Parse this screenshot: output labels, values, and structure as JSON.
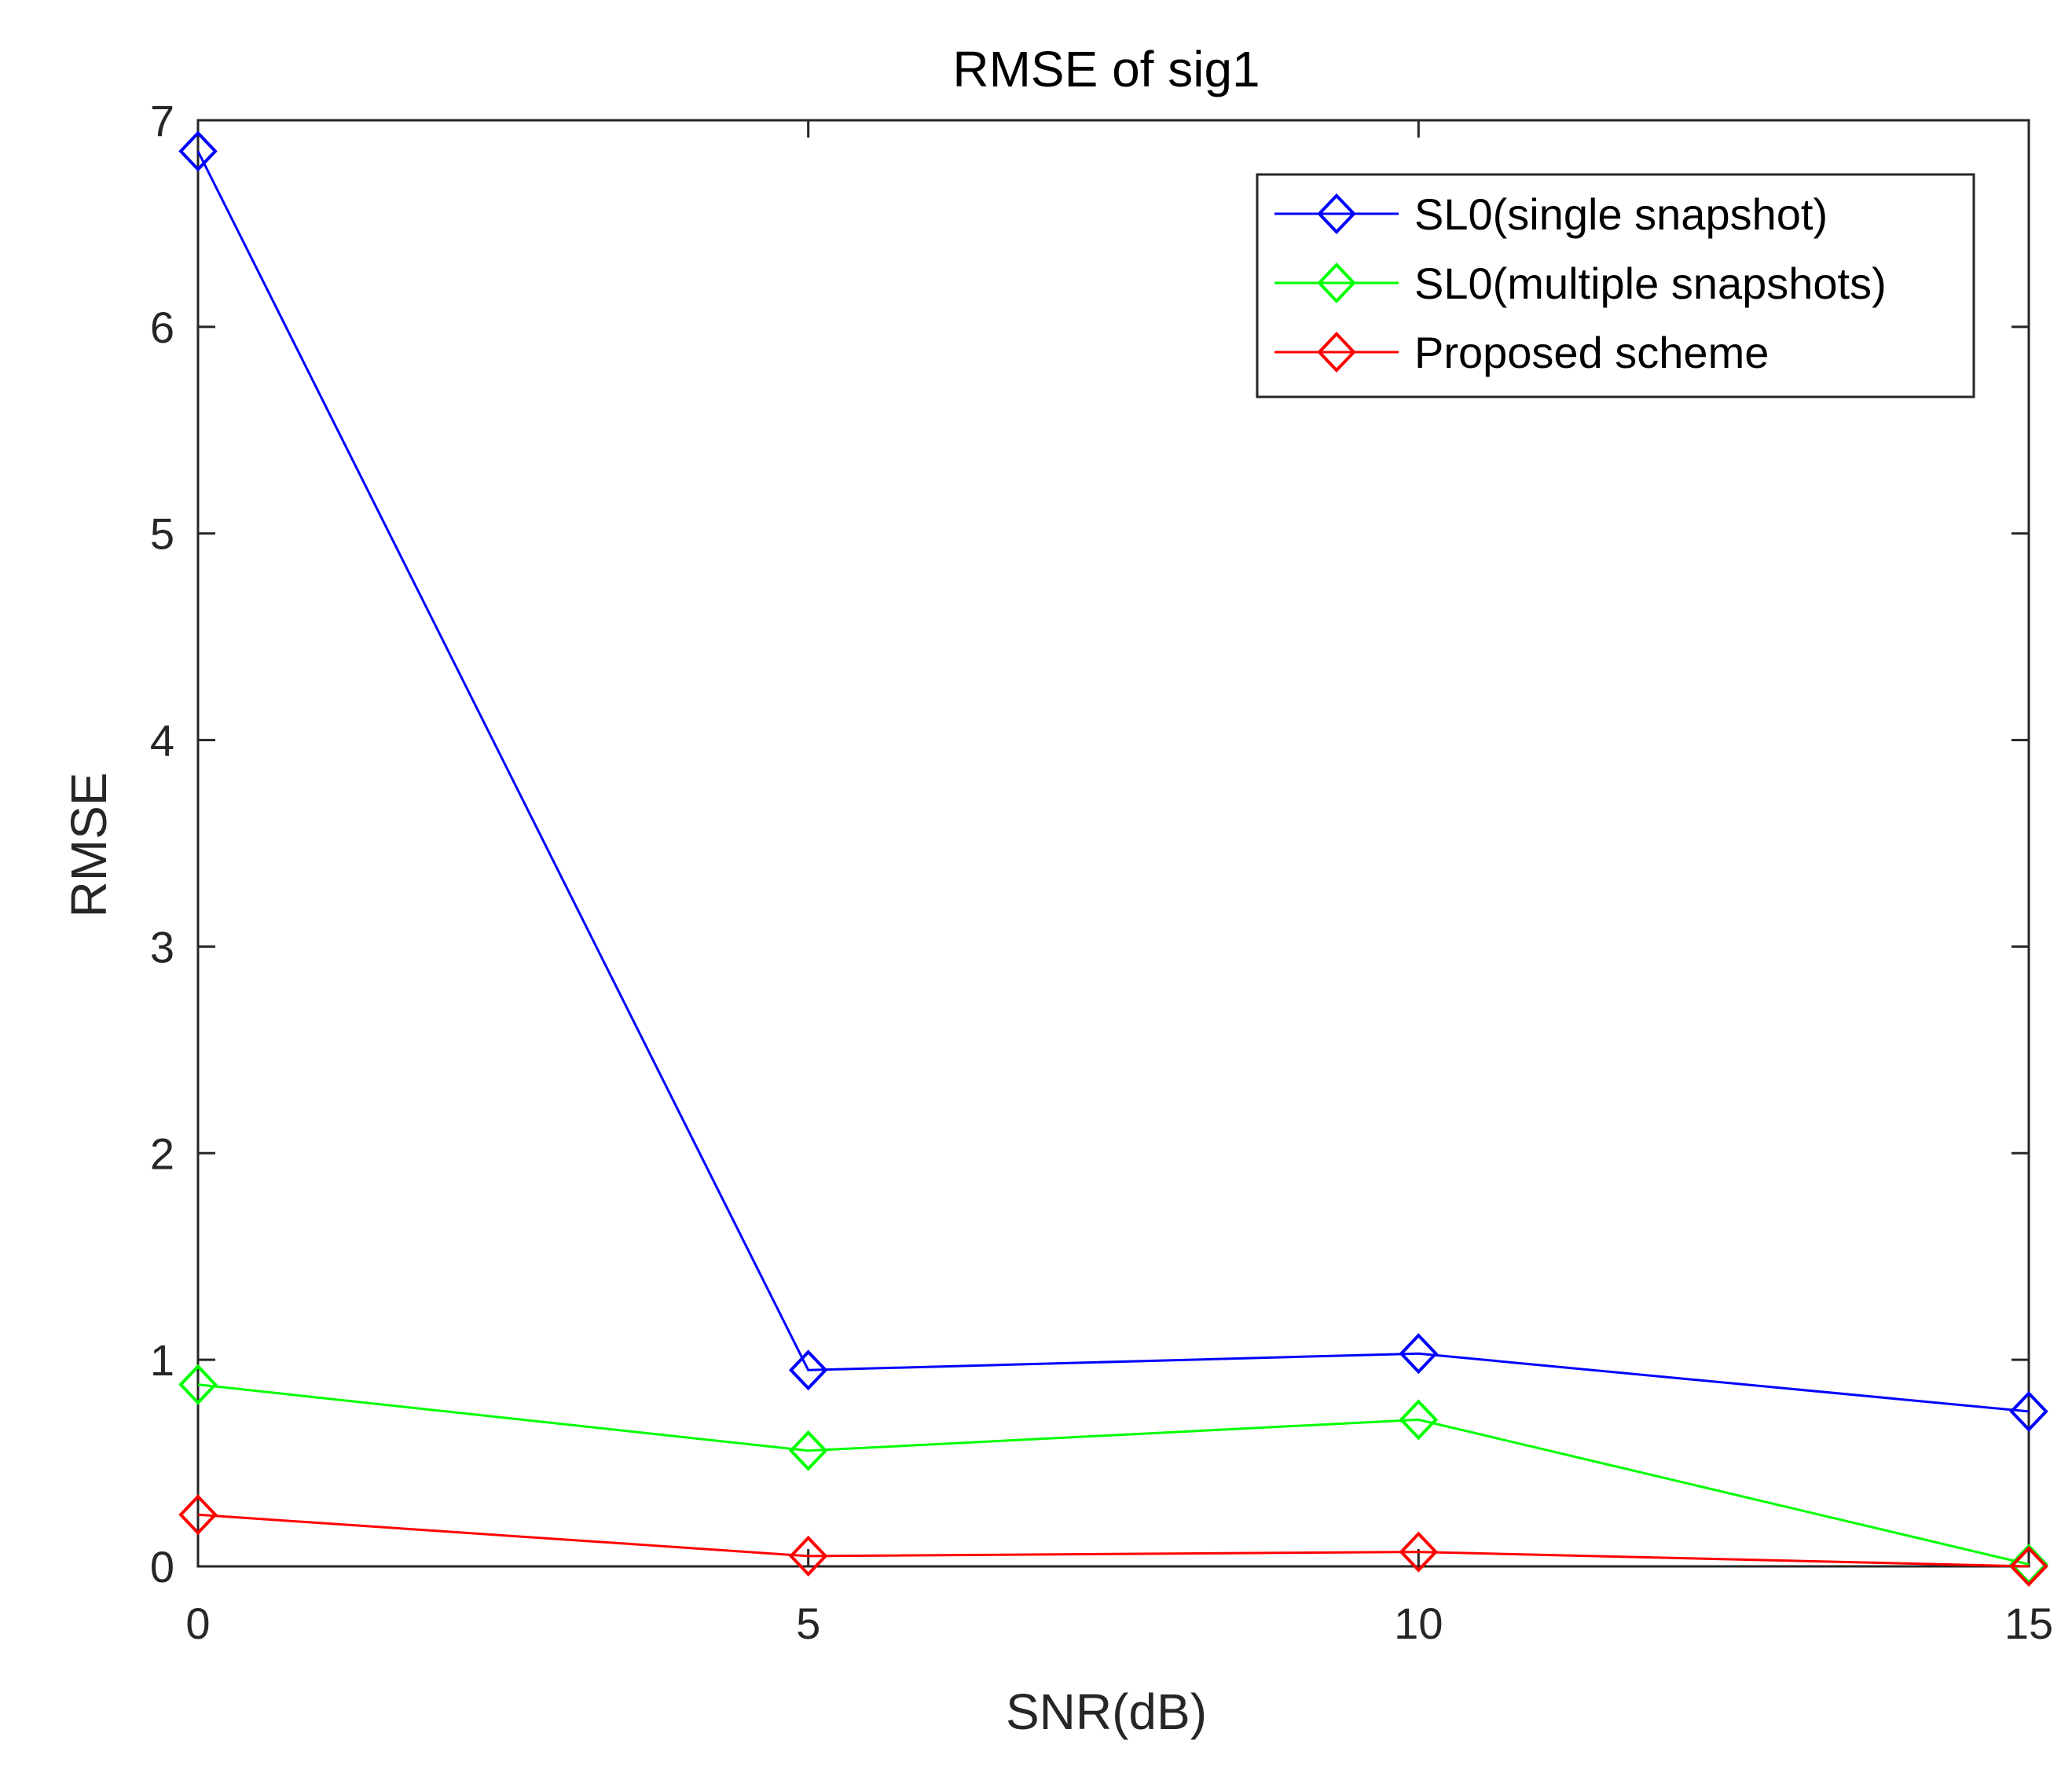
{
  "chart_data": {
    "type": "line",
    "title": "RMSE of sig1",
    "xlabel": "SNR(dB)",
    "ylabel": "RMSE",
    "x": [
      0,
      5,
      10,
      15
    ],
    "xlim": [
      0,
      15
    ],
    "ylim": [
      0,
      7
    ],
    "xticks": [
      0,
      5,
      10,
      15
    ],
    "yticks": [
      0,
      1,
      2,
      3,
      4,
      5,
      6,
      7
    ],
    "grid": false,
    "legend_position": "top-right",
    "marker": "diamond",
    "series": [
      {
        "name": "SL0(single snapshot)",
        "color": "#0000ff",
        "values": [
          6.85,
          0.95,
          1.03,
          0.75
        ]
      },
      {
        "name": "SL0(multiple snapshots)",
        "color": "#00ff00",
        "values": [
          0.88,
          0.56,
          0.71,
          0.01
        ]
      },
      {
        "name": "Proposed scheme",
        "color": "#ff0000",
        "values": [
          0.25,
          0.05,
          0.07,
          0.0
        ]
      }
    ]
  }
}
